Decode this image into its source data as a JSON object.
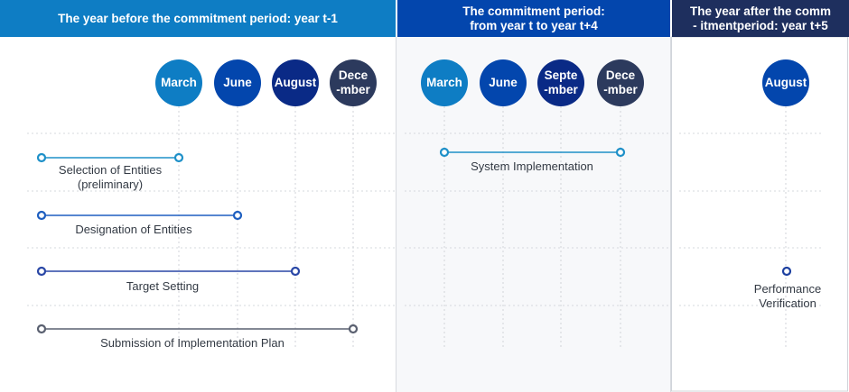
{
  "headers": [
    {
      "text": "The year before the commitment period: year t-1"
    },
    {
      "text": "The commitment period:\nfrom year t to year t+4"
    },
    {
      "text": "The year after the comm\n- itmentperiod: year t+5"
    }
  ],
  "months": [
    {
      "label": "March",
      "color": "#0e7dc4"
    },
    {
      "label": "June",
      "color": "#0346ad"
    },
    {
      "label": "August",
      "color": "#0a2a86"
    },
    {
      "label": "Dece\n-mber",
      "color": "#2c3a5d"
    },
    {
      "label": "March",
      "color": "#0e7dc4"
    },
    {
      "label": "June",
      "color": "#0346ad"
    },
    {
      "label": "Septe\n-mber",
      "color": "#0a2a86"
    },
    {
      "label": "Dece\n-mber",
      "color": "#2c3a5d"
    },
    {
      "label": "August",
      "color": "#0346ad"
    }
  ],
  "tasks": [
    {
      "label": "Selection of Entities\n(preliminary)",
      "color": "#1e90c8"
    },
    {
      "label": "Designation of Entities",
      "color": "#1e5fc0"
    },
    {
      "label": "Target Setting",
      "color": "#2a47a6"
    },
    {
      "label": "Submission of Implementation Plan",
      "color": "#5a6070"
    },
    {
      "label": "System Implementation",
      "color": "#1e90c8"
    },
    {
      "label": "Performance\nVerification",
      "color": "#1d40a0"
    }
  ]
}
